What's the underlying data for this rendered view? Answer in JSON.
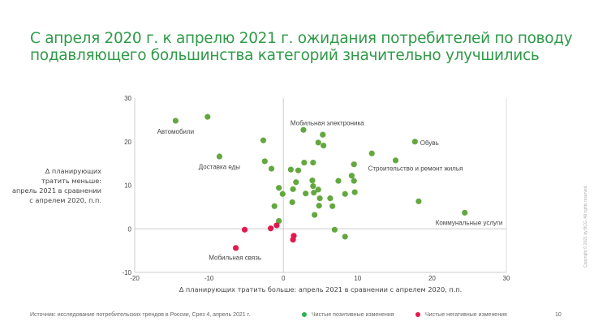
{
  "title": "С апреля 2020 г. к апрелю 2021 г. ожидания потребителей по поводу подавляющего большинства категорий значительно улучшились",
  "footer": {
    "source": "Источник: исследование потребительских трендов в России, Срез 4, апрель 2021 г.",
    "legend_positive": "Чистые позитивные изменения",
    "legend_negative": "Чистые негативные изменения",
    "page_number": "10",
    "copyright": "Copyright © 2021 by BCG. All rights reserved."
  },
  "colors": {
    "positive": "#63a83f",
    "negative": "#e01a4f",
    "legend_positive": "#2db34c",
    "title": "#2f9a48"
  },
  "chart_data": {
    "type": "scatter",
    "xlabel": "Δ планирующих тратить больше: апрель 2021 в сравнении с апрелем 2020, п.п.",
    "ylabel": "Δ планирующих тратить меньше: апрель 2021 в сравнении с апрелем 2020, п.п.",
    "ylabel_lines": [
      "Δ планирующих",
      "тратить меньше:",
      "апрель 2021 в сравнении",
      "с апрелем 2020, п.п."
    ],
    "xlim": [
      -20,
      30
    ],
    "ylim": [
      -10,
      30
    ],
    "xticks": [
      "-20",
      "-10",
      "0",
      "10",
      "20",
      "30"
    ],
    "yticks": [
      "-10",
      "0",
      "10",
      "20",
      "30"
    ],
    "grid": false,
    "legend": "bottom",
    "series": [
      {
        "name": "Чистые позитивные изменения",
        "color": "#63a83f",
        "points": [
          [
            -14.5,
            24.8
          ],
          [
            -10.2,
            25.7
          ],
          [
            -8.6,
            16.6
          ],
          [
            -2.7,
            20.3
          ],
          [
            -2.5,
            15.5
          ],
          [
            -1.6,
            13.8
          ],
          [
            -0.6,
            9.4
          ],
          [
            -0.1,
            8.0
          ],
          [
            -1.2,
            5.2
          ],
          [
            -0.6,
            1.8
          ],
          [
            1.0,
            13.6
          ],
          [
            2.0,
            13.4
          ],
          [
            1.7,
            10.7
          ],
          [
            1.3,
            9.1
          ],
          [
            1.2,
            6.1
          ],
          [
            2.8,
            15.2
          ],
          [
            3.0,
            8.1
          ],
          [
            2.7,
            22.7
          ],
          [
            4.0,
            15.2
          ],
          [
            3.9,
            11.1
          ],
          [
            4.0,
            9.8
          ],
          [
            4.1,
            8.3
          ],
          [
            4.7,
            9.0
          ],
          [
            5.3,
            21.6
          ],
          [
            4.7,
            19.8
          ],
          [
            5.4,
            19.1
          ],
          [
            4.9,
            7.0
          ],
          [
            4.8,
            5.3
          ],
          [
            4.2,
            3.2
          ],
          [
            6.3,
            7.0
          ],
          [
            6.6,
            5.2
          ],
          [
            7.4,
            11.0
          ],
          [
            6.9,
            -0.2
          ],
          [
            8.3,
            8.0
          ],
          [
            8.3,
            -1.8
          ],
          [
            9.2,
            12.2
          ],
          [
            9.5,
            14.8
          ],
          [
            9.5,
            11.0
          ],
          [
            9.6,
            8.4
          ],
          [
            11.9,
            17.3
          ],
          [
            15.1,
            15.7
          ],
          [
            17.7,
            20.0
          ],
          [
            18.2,
            6.3
          ],
          [
            24.4,
            3.7
          ]
        ]
      },
      {
        "name": "Чистые негативные изменения",
        "color": "#e01a4f",
        "points": [
          [
            -5.2,
            -0.2
          ],
          [
            -6.4,
            -4.4
          ],
          [
            -1.7,
            0.1
          ],
          [
            -0.9,
            0.8
          ],
          [
            1.4,
            -1.6
          ],
          [
            1.3,
            -2.5
          ]
        ]
      }
    ],
    "annotations": [
      {
        "text": "Автомобили",
        "x": -14.5,
        "y": 22.4,
        "anchor": "middle"
      },
      {
        "text": "Мобильная электроника",
        "x": 5.9,
        "y": 24.3,
        "anchor": "middle"
      },
      {
        "text": "Обувь",
        "x": 18.4,
        "y": 19.8,
        "anchor": "start"
      },
      {
        "text": "Доставка еды",
        "x": -8.6,
        "y": 14.3,
        "anchor": "middle"
      },
      {
        "text": "Строительство и ремонт жилья",
        "x": 11.4,
        "y": 13.9,
        "anchor": "start"
      },
      {
        "text": "Коммунальные услуги",
        "x": 29.5,
        "y": 1.4,
        "anchor": "end"
      },
      {
        "text": "Мобильная связь",
        "x": -6.5,
        "y": -6.6,
        "anchor": "middle"
      }
    ]
  }
}
